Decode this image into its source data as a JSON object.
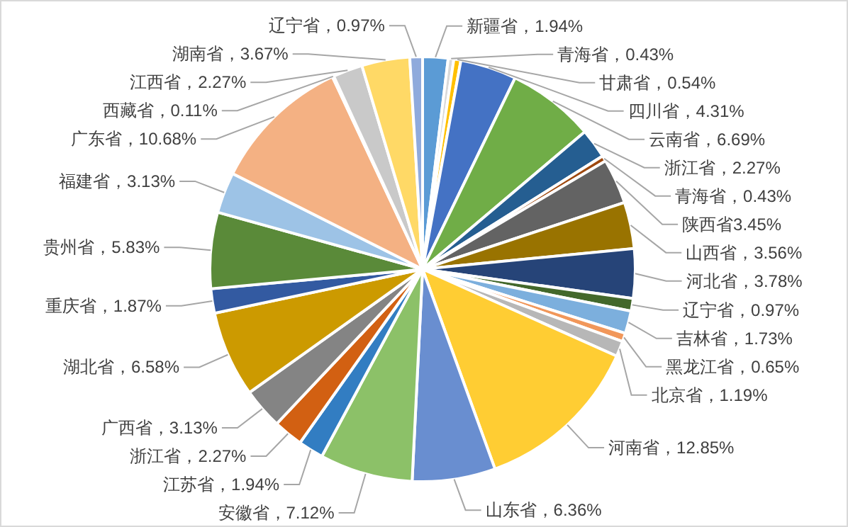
{
  "chart_data": {
    "type": "pie",
    "categories": [
      "新疆省",
      "青海省",
      "甘肃省",
      "四川省",
      "云南省",
      "浙江省",
      "青海省",
      "陕西省",
      "山西省",
      "河北省",
      "辽宁省",
      "吉林省",
      "黑龙江省",
      "北京省",
      "河南省",
      "山东省",
      "安徽省",
      "江苏省",
      "浙江省",
      "广西省",
      "湖北省",
      "重庆省",
      "贵州省",
      "福建省",
      "广东省",
      "西藏省",
      "江西省",
      "湖南省",
      "辽宁省"
    ],
    "values": [
      1.94,
      0.43,
      0.54,
      4.31,
      6.69,
      2.27,
      0.43,
      3.45,
      3.56,
      3.78,
      0.97,
      1.73,
      0.65,
      1.19,
      12.85,
      6.36,
      7.12,
      1.94,
      2.27,
      3.13,
      6.58,
      1.87,
      5.83,
      3.13,
      10.68,
      0.11,
      2.27,
      3.67,
      0.97
    ],
    "value_labels": [
      "，1.94%",
      "，0.43%",
      "，0.54%",
      "，4.31%",
      "，6.69%",
      "，2.27%",
      "，0.43%",
      "3.45%",
      "，3.56%",
      "，3.78%",
      "，0.97%",
      "，1.73%",
      "，0.65%",
      "，1.19%",
      "，12.85%",
      "，6.36%",
      "，7.12%",
      "，1.94%",
      "，2.27%",
      "，3.13%",
      "，6.58%",
      "，1.87%",
      "，5.83%",
      "，3.13%",
      "，10.68%",
      "，0.11%",
      "，2.27%",
      "，3.67%",
      "，0.97%"
    ],
    "colors": [
      "#5b9bd5",
      "#d9d9d9",
      "#ffc000",
      "#4472c4",
      "#70ad47",
      "#255e91",
      "#9e480e",
      "#636363",
      "#997300",
      "#264478",
      "#43682b",
      "#7cafdd",
      "#f1975a",
      "#b7b7b7",
      "#ffcd33",
      "#698ed0",
      "#8cc168",
      "#327dc2",
      "#d26012",
      "#848484",
      "#cc9a00",
      "#335aa1",
      "#5a8a39",
      "#9dc3e6",
      "#f4b183",
      "#ffd966",
      "#c9c9c9",
      "#ffd966",
      "#8faadc"
    ]
  }
}
